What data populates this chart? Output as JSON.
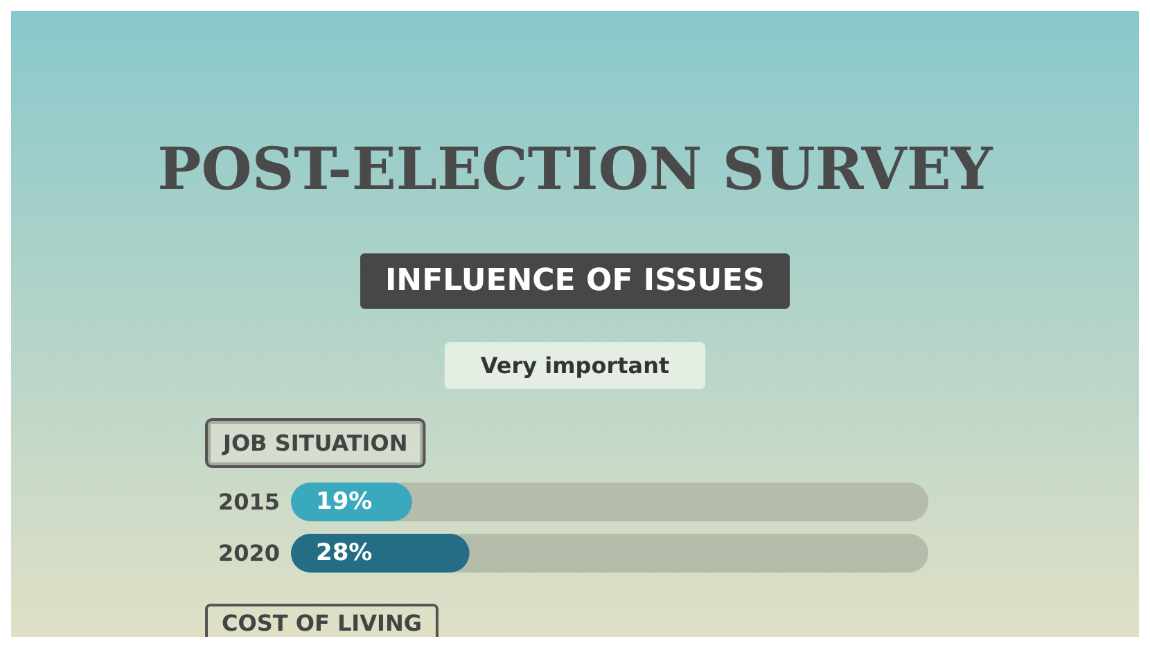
{
  "chart_data": {
    "type": "bar",
    "orientation": "horizontal",
    "title": "POST-ELECTION SURVEY",
    "subtitle": "INFLUENCE OF ISSUES",
    "ylabel": "JOB SITUATION",
    "annotations": [
      "Very important",
      "COST OF LIVING"
    ],
    "categories": [
      "2015",
      "2020"
    ],
    "values": [
      19,
      28
    ],
    "colors": [
      "#3aa9bd",
      "#236d85"
    ],
    "value_labels": [
      "19%",
      "28%"
    ],
    "xlim": [
      0,
      100
    ],
    "tick_labels": "y",
    "grid": false
  }
}
